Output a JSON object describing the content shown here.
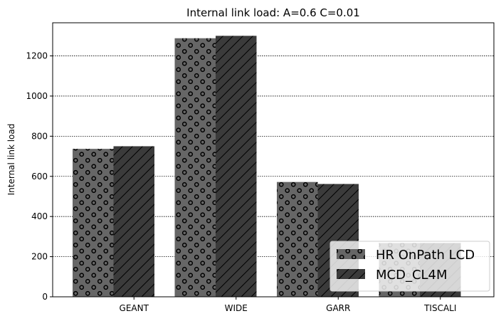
{
  "chart_data": {
    "type": "bar",
    "title": "Internal link load: A=0.6 C=0.01",
    "xlabel": "",
    "ylabel": "Internal link load",
    "categories": [
      "GEANT",
      "WIDE",
      "GARR",
      "TISCALI"
    ],
    "series": [
      {
        "name": "HR OnPath LCD",
        "values": [
          737,
          1288,
          572,
          268
        ],
        "color": "#666666",
        "pattern": "circles"
      },
      {
        "name": "MCD_CL4M",
        "values": [
          750,
          1300,
          562,
          268
        ],
        "color": "#3b3b3b",
        "pattern": "diagonal"
      }
    ],
    "ylim": [
      0,
      1365
    ],
    "yticks": [
      0,
      200,
      400,
      600,
      800,
      1000,
      1200
    ],
    "grid": "y-dotted",
    "legend_position": "bottom-right"
  }
}
